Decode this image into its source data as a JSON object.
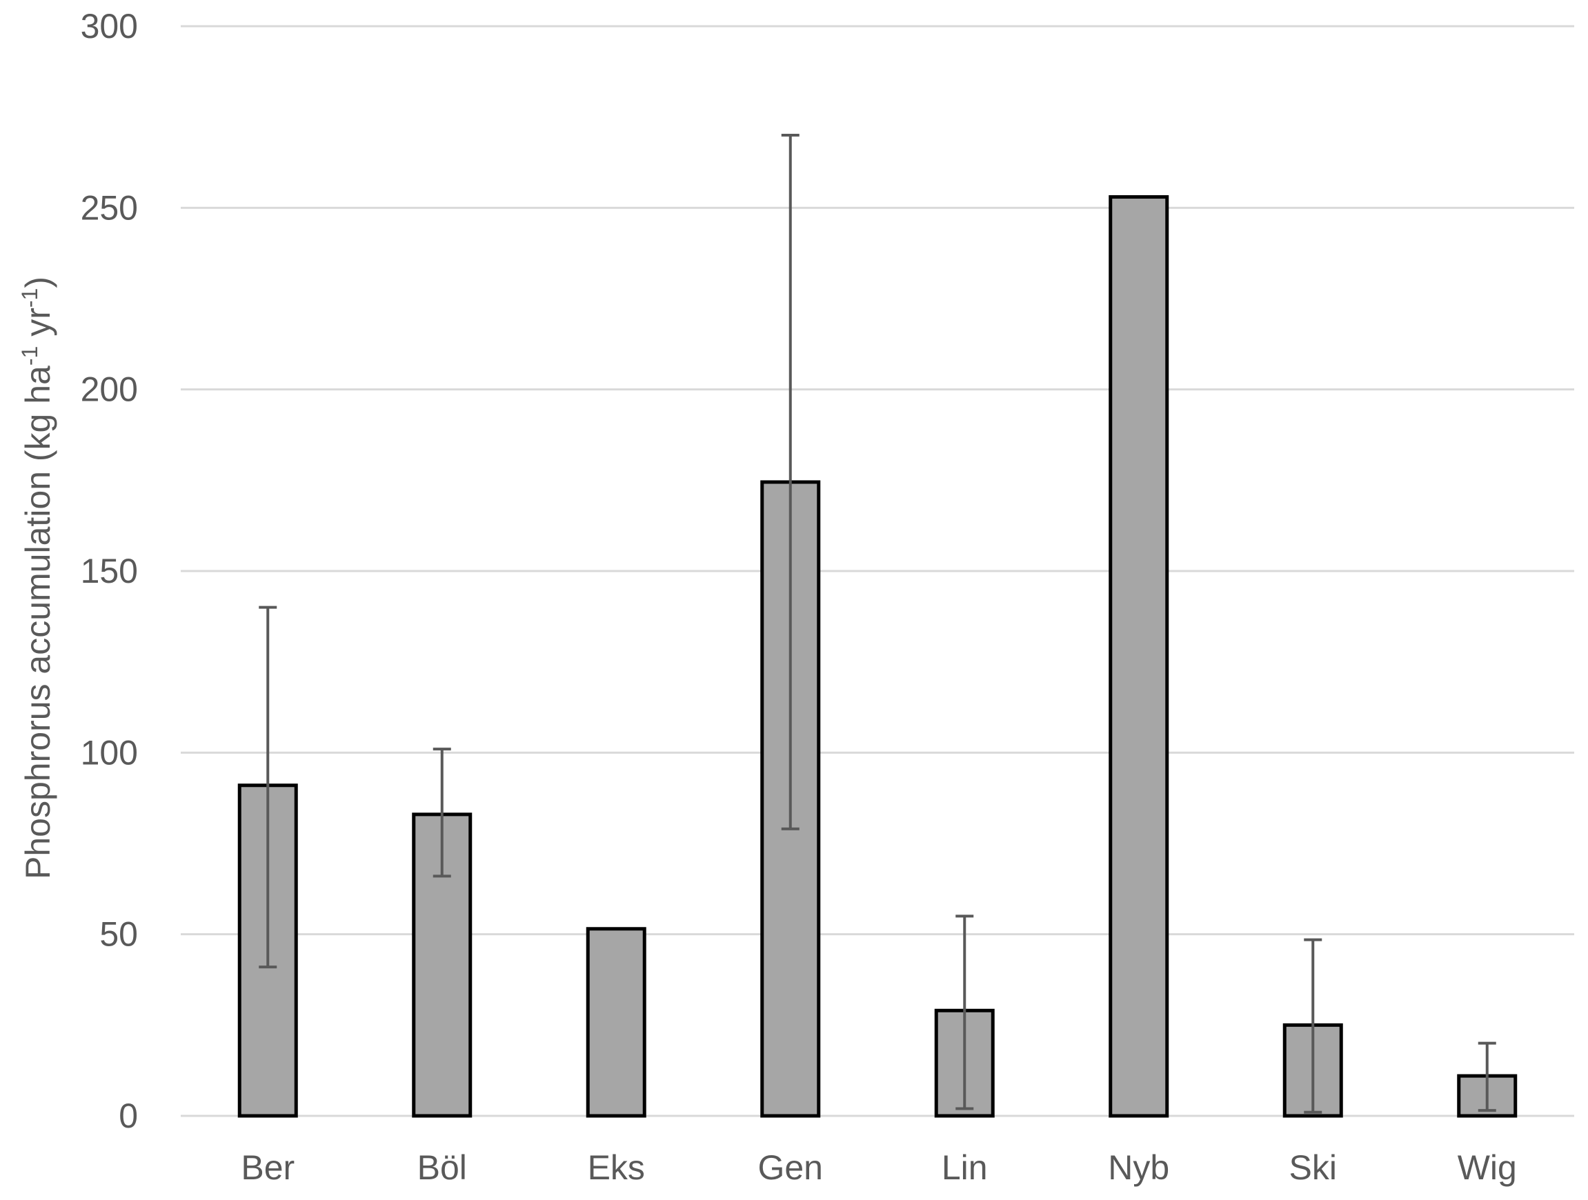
{
  "chart_data": {
    "type": "bar",
    "title": "",
    "xlabel": "",
    "ylabel": {
      "main": "Phosphrorus accumulation (kg ha",
      "sup1": "-1",
      "mid": " yr",
      "sup2": "-1",
      "end": ")"
    },
    "ylim": [
      0,
      300
    ],
    "yticks": [
      0,
      50,
      100,
      150,
      200,
      250,
      300
    ],
    "grid": true,
    "legend": "none",
    "categories": [
      "Ber",
      "Böl",
      "Eks",
      "Gen",
      "Lin",
      "Nyb",
      "Ski",
      "Wig"
    ],
    "values": [
      91,
      83,
      51.5,
      174.5,
      29,
      253,
      25,
      11
    ],
    "error_low": [
      41,
      66,
      null,
      79,
      2,
      null,
      1,
      1.5
    ],
    "error_high": [
      140,
      101,
      null,
      270,
      55,
      null,
      48.5,
      20
    ],
    "colors": {
      "bar_fill": "#a6a6a6",
      "bar_stroke": "#000000",
      "error_bar": "#595959",
      "grid": "#d9d9d9",
      "text": "#595959"
    }
  }
}
